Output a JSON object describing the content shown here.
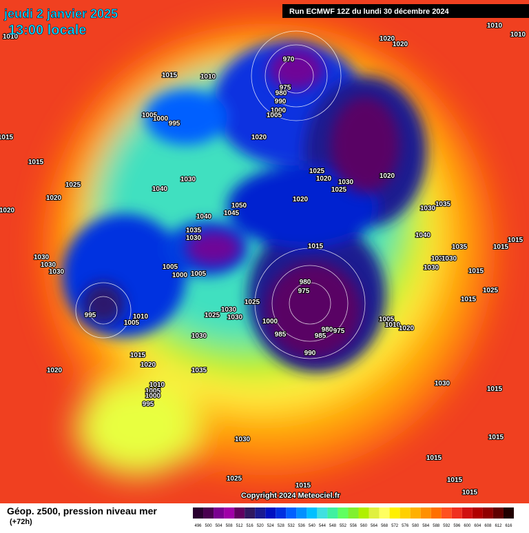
{
  "header": {
    "title": "jeudi 2 janvier 2025",
    "time": "13:00 locale",
    "run": "Run ECMWF 12Z du lundi 30 décembre 2024"
  },
  "footer": {
    "copyright": "Copyright 2024 Meteociel.fr",
    "field": "Géop. z500, pression niveau mer",
    "lead": "(+72h)"
  },
  "colorbar": {
    "labels": [
      496,
      500,
      504,
      508,
      512,
      516,
      520,
      524,
      528,
      532,
      536,
      540,
      544,
      548,
      552,
      556,
      560,
      564,
      568,
      572,
      576,
      580,
      584,
      588,
      592,
      596,
      600,
      604,
      608,
      612,
      616
    ],
    "colors": [
      "#2a0030",
      "#4a0050",
      "#7a0090",
      "#a000a8",
      "#600060",
      "#301860",
      "#1a1a90",
      "#0010c0",
      "#0030e0",
      "#0060ff",
      "#0090ff",
      "#00c0ff",
      "#40e0e0",
      "#40f0a0",
      "#60ff60",
      "#80f030",
      "#b0f000",
      "#e0f040",
      "#ffff60",
      "#fff000",
      "#ffd000",
      "#ffb000",
      "#ff9000",
      "#ff7000",
      "#ff5020",
      "#f03020",
      "#d01010",
      "#b00000",
      "#900000",
      "#600000",
      "#200000"
    ]
  },
  "isobars": [
    "1010",
    "1010",
    "1010",
    "1020",
    "1020",
    "970",
    "1015",
    "1010",
    "975",
    "980",
    "990",
    "1000",
    "1005",
    "1005",
    "1000",
    "995",
    "1015",
    "1020",
    "1015",
    "1025",
    "1020",
    "1030",
    "1020",
    "1025",
    "1025",
    "1020",
    "1040",
    "1030",
    "1020",
    "1035",
    "1030",
    "1050",
    "1045",
    "1040",
    "1020",
    "1035",
    "1030",
    "1040",
    "1015",
    "1035",
    "1015",
    "1015",
    "1030",
    "1030",
    "1030",
    "1005",
    "1000",
    "1005",
    "1035",
    "1030",
    "1030",
    "1015",
    "980",
    "975",
    "1025",
    "1015",
    "1025",
    "1030",
    "1030",
    "1025",
    "995",
    "1010",
    "1005",
    "1000",
    "980",
    "975",
    "985",
    "985",
    "1005",
    "1010",
    "1020",
    "1030",
    "990",
    "1015",
    "1020",
    "1020",
    "1035",
    "1010",
    "1005",
    "1000",
    "995",
    "1030",
    "1015",
    "1030",
    "1015",
    "1015",
    "1015",
    "1015",
    "1025",
    "1015"
  ]
}
